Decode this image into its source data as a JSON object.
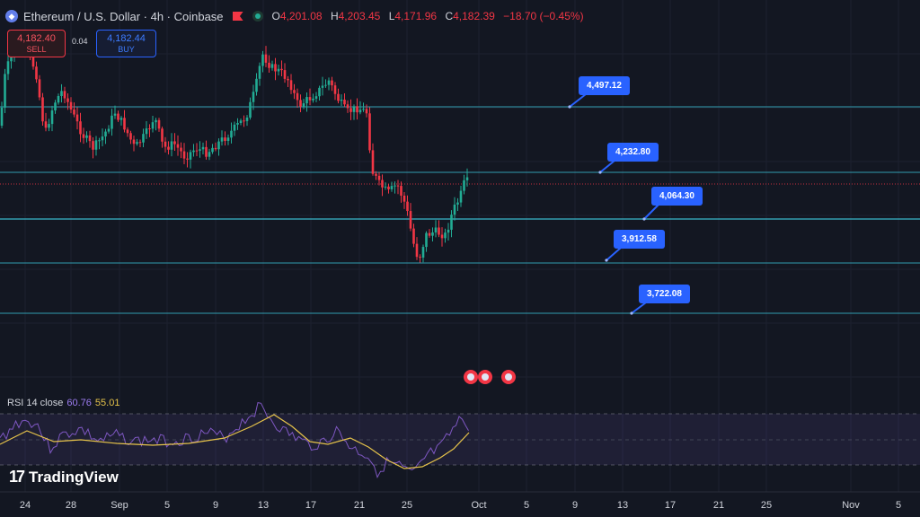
{
  "header": {
    "title": "Ethereum / U.S. Dollar · 4h · Coinbase",
    "ohlc": [
      {
        "k": "O",
        "v": "4,201.08"
      },
      {
        "k": "H",
        "v": "4,203.45"
      },
      {
        "k": "L",
        "v": "4,171.96"
      },
      {
        "k": "C",
        "v": "4,182.39"
      }
    ],
    "change": "−18.70 (−0.45%)",
    "logo_icon": "ethereum-icon",
    "flag_icon": "flag-icon",
    "status_icon": "market-status-icon"
  },
  "trade": {
    "sell_price": "4,182.40",
    "sell_label": "SELL",
    "spread": "0.04",
    "buy_price": "4,182.44",
    "buy_label": "BUY"
  },
  "levels": [
    {
      "label": "4,497.12"
    },
    {
      "label": "4,232.80"
    },
    {
      "label": "4,064.30"
    },
    {
      "label": "3,912.58"
    },
    {
      "label": "3,722.08"
    }
  ],
  "rsi": {
    "label": "RSI 14 close",
    "value1": "60.76",
    "value2": "55.01"
  },
  "x_axis": [
    "24",
    "28",
    "Sep",
    "5",
    "9",
    "13",
    "17",
    "21",
    "25",
    "Oct",
    "5",
    "9",
    "13",
    "17",
    "21",
    "25",
    "Nov",
    "5"
  ],
  "brand": {
    "name": "TradingView"
  },
  "colors": {
    "background": "#131722",
    "up": "#22ab94",
    "down": "#f23645",
    "level_line": "#38b6c9",
    "badge": "#2962ff",
    "rsi_line": "#7e57c2",
    "rsi_ma": "#e6c34a"
  }
}
